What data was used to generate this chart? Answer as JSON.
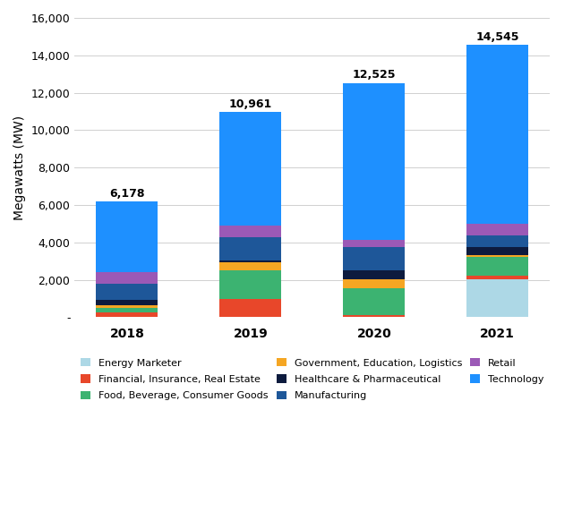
{
  "years": [
    "2018",
    "2019",
    "2020",
    "2021"
  ],
  "totals": [
    6178,
    10961,
    12525,
    14545
  ],
  "categories": [
    "Energy Marketer",
    "Financial, Insurance, Real Estate",
    "Food, Beverage, Consumer Goods",
    "Government, Education, Logistics",
    "Healthcare & Pharmaceutical",
    "Manufacturing",
    "Retail",
    "Technology"
  ],
  "legend_order": [
    0,
    1,
    2,
    3,
    4,
    5,
    6,
    7
  ],
  "colors": [
    "#add8e6",
    "#e8472a",
    "#3cb371",
    "#f5a623",
    "#0d1b3e",
    "#1e5799",
    "#9b59b6",
    "#1e90ff"
  ],
  "values": {
    "Energy Marketer": [
      0,
      0,
      0,
      2050
    ],
    "Financial, Insurance, Real Estate": [
      250,
      1000,
      100,
      150
    ],
    "Food, Beverage, Consumer Goods": [
      250,
      1500,
      1450,
      1050
    ],
    "Government, Education, Logistics": [
      130,
      420,
      480,
      80
    ],
    "Healthcare & Pharmaceutical": [
      300,
      120,
      500,
      430
    ],
    "Manufacturing": [
      850,
      1250,
      1200,
      600
    ],
    "Retail": [
      650,
      600,
      400,
      650
    ],
    "Technology": [
      3748,
      6071,
      8395,
      9535
    ]
  },
  "ylabel": "Megawatts (MW)",
  "ylim": [
    0,
    16000
  ],
  "yticks": [
    0,
    2000,
    4000,
    6000,
    8000,
    10000,
    12000,
    14000,
    16000
  ],
  "ytick_labels": [
    "-",
    "2,000",
    "4,000",
    "6,000",
    "8,000",
    "10,000",
    "12,000",
    "14,000",
    "16,000"
  ],
  "bar_width": 0.5,
  "bg_color": "#ffffff",
  "grid_color": "#d0d0d0"
}
